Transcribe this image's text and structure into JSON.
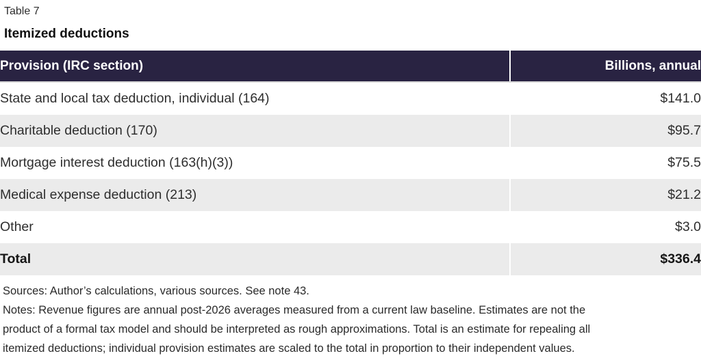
{
  "header": {
    "table_label": "Table 7",
    "title": "Itemized deductions"
  },
  "table": {
    "columns": [
      "Provision (IRC section)",
      "Billions, annual"
    ],
    "rows": [
      {
        "provision": "State and local tax deduction, individual (164)",
        "amount": "$141.0"
      },
      {
        "provision": "Charitable deduction (170)",
        "amount": "$95.7"
      },
      {
        "provision": "Mortgage interest deduction (163(h)(3))",
        "amount": "$75.5"
      },
      {
        "provision": "Medical expense deduction (213)",
        "amount": "$21.2"
      },
      {
        "provision": "Other",
        "amount": "$3.0"
      },
      {
        "provision": "Total",
        "amount": "$336.4"
      }
    ]
  },
  "footer": {
    "sources": "Sources: Author’s calculations, various sources. See note 43.",
    "notes_lines": [
      "Notes: Revenue figures are annual post-2026 averages measured from a current law baseline. Estimates are not the",
      "product of a formal tax model and should be interpreted as rough approximations. Total is an estimate for repealing all",
      "itemized deductions; individual provision estimates are scaled to the total in proportion to their independent values."
    ]
  },
  "colors": {
    "header_bg": "#292342",
    "alt_row_bg": "#ebebeb",
    "header_text": "#ffffff",
    "body_text": "#2e2e2e"
  },
  "chart_data": {
    "type": "table",
    "title": "Itemized deductions",
    "columns": [
      "Provision (IRC section)",
      "Billions, annual"
    ],
    "rows": [
      [
        "State and local tax deduction, individual (164)",
        141.0
      ],
      [
        "Charitable deduction (170)",
        95.7
      ],
      [
        "Mortgage interest deduction (163(h)(3))",
        75.5
      ],
      [
        "Medical expense deduction (213)",
        21.2
      ],
      [
        "Other",
        3.0
      ],
      [
        "Total",
        336.4
      ]
    ],
    "unit": "billions USD, annual"
  }
}
